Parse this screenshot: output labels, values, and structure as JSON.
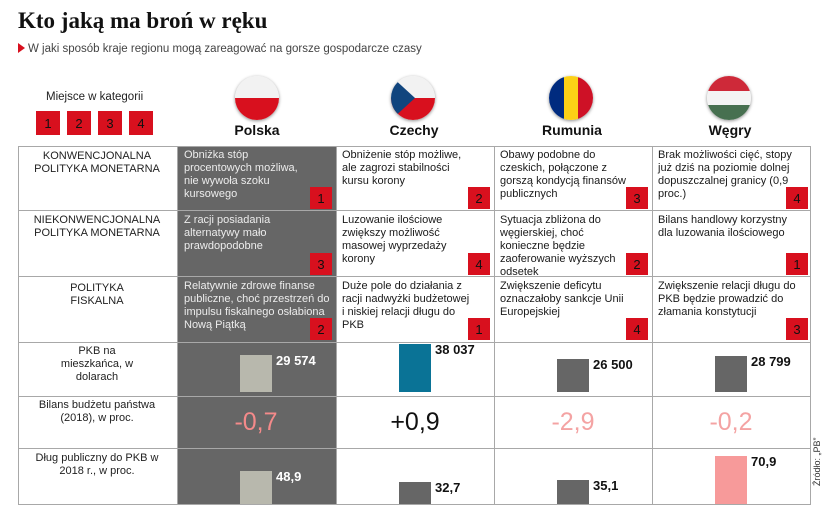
{
  "header": {
    "title": "Kto jaką ma broń w ręku",
    "subtitle": "W jaki sposób kraje regionu mogą zareagować na gorsze gospodarcze czasy"
  },
  "legend": {
    "label": "Miejsce w kategorii",
    "ranks": [
      "1",
      "2",
      "3",
      "4"
    ]
  },
  "countries": [
    "Polska",
    "Czechy",
    "Rumunia",
    "Węgry"
  ],
  "flags": [
    "flag-poland-icon",
    "flag-czechia-icon",
    "flag-romania-icon",
    "flag-hungary-icon"
  ],
  "colors": {
    "red": "#d8101e",
    "highlight_bg": "#666666",
    "bar_grey": "#666666",
    "bar_light": "#b8b8ad",
    "bar_blue": "#0a7396",
    "bar_pink": "#f79a9a",
    "negative_text": "#f4a3a3",
    "negative_text_on_dark": "#f48a8a"
  },
  "rows": {
    "conventional": {
      "label": "KONWENCJONALNA POLITYKA MONETARNA",
      "cells": [
        {
          "text": "Obniżka stóp procentowych możliwa, nie wywoła szoku kursowego",
          "rank": "1"
        },
        {
          "text": "Obniżenie stóp możliwe, ale zagrozi stabilności kursu korony",
          "rank": "2"
        },
        {
          "text": "Obawy podobne do czeskich, połączone z gorszą kondycją finansów publicznych",
          "rank": "3"
        },
        {
          "text": "Brak możliwości cięć, stopy już dziś na poziomie dolnej dopuszczalnej granicy (0,9 proc.)",
          "rank": "4"
        }
      ]
    },
    "unconventional": {
      "label": "NIEKONWENCJONALNA POLITYKA MONETARNA",
      "cells": [
        {
          "text": "Z racji posiadania alternatywy mało prawdopodobne",
          "rank": "3"
        },
        {
          "text": "Luzowanie ilościowe zwiększy możliwość masowej wyprzedaży korony",
          "rank": "4"
        },
        {
          "text": "Sytuacja zbliżona do węgierskiej, choć konieczne będzie zaoferowanie wyższych odsetek",
          "rank": "2"
        },
        {
          "text": "Bilans handlowy korzystny dla luzowania ilościowego",
          "rank": "1"
        }
      ]
    },
    "fiscal": {
      "label": "POLITYKA FISKALNA",
      "cells": [
        {
          "text": "Relatywnie zdrowe finanse publiczne, choć przestrzeń do impulsu fiskalnego osłabiona Nową Piątką",
          "rank": "2"
        },
        {
          "text": "Duże pole do działania z racji nadwyżki budżetowej i niskiej relacji długu do PKB",
          "rank": "1"
        },
        {
          "text": "Zwiększenie deficytu oznaczałoby sankcje Unii Europejskiej",
          "rank": "4"
        },
        {
          "text": "Zwiększenie relacji długu do PKB będzie prowadzić do złamania konstytucji",
          "rank": "3"
        }
      ]
    },
    "gdp": {
      "label": "PKB na mieszkańca, w dolarach",
      "values": [
        29574,
        38037,
        26500,
        28799
      ],
      "display": [
        "29 574",
        "38 037",
        "26 500",
        "28 799"
      ]
    },
    "budget": {
      "label": "Bilans budżetu państwa (2018), w proc.",
      "values": [
        -0.7,
        0.9,
        -2.9,
        -0.2
      ],
      "display": [
        "-0,7",
        "+0,9",
        "-2,9",
        "-0,2"
      ]
    },
    "debt": {
      "label": "Dług publiczny do PKB w 2018 r., w proc.",
      "values": [
        48.9,
        32.7,
        35.1,
        70.9
      ],
      "display": [
        "48,9",
        "32,7",
        "35,1",
        "70,9"
      ]
    }
  },
  "source": "Źródło: „PB”"
}
